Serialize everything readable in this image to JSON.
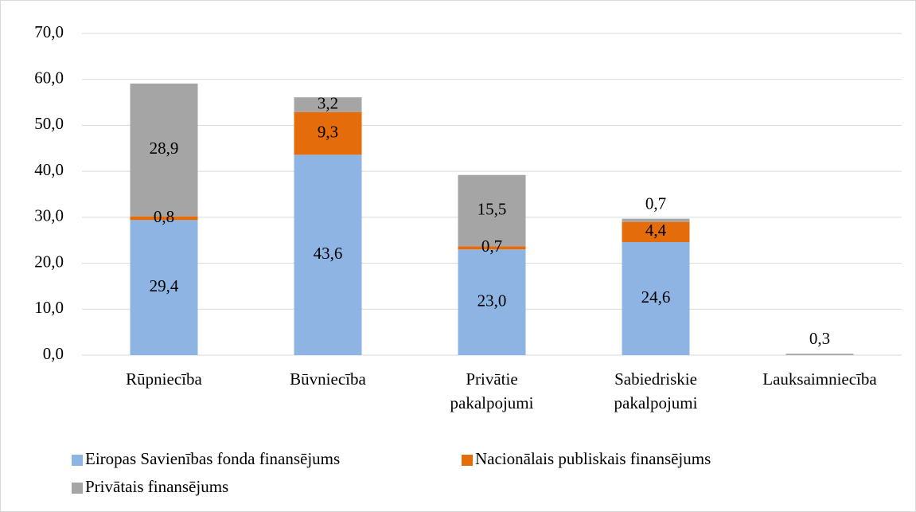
{
  "chart_data": {
    "type": "stacked_bar",
    "categories": [
      "Rūpniecība",
      "Būvniecība",
      "Privātie pakalpojumi",
      "Sabiedriskie pakalpojumi",
      "Lauksaimniecība"
    ],
    "series": [
      {
        "name": "Eiropas Savienības fonda finansējums",
        "color": "#8db4e2",
        "values": [
          29.4,
          43.6,
          23.0,
          24.6,
          null
        ],
        "value_labels": [
          "29,4",
          "43,6",
          "23,0",
          "24,6",
          null
        ]
      },
      {
        "name": "Nacionālais publiskais finansējums",
        "color": "#e46c0a",
        "values": [
          0.8,
          9.3,
          0.7,
          4.4,
          null
        ],
        "value_labels": [
          "0,8",
          "9,3",
          "0,7",
          "4,4",
          null
        ]
      },
      {
        "name": "Privātais finansējums",
        "color": "#a5a5a5",
        "values": [
          28.9,
          3.2,
          15.5,
          0.7,
          0.3
        ],
        "value_labels": [
          "28,9",
          "3,2",
          "15,5",
          "0,7",
          "0,3"
        ]
      }
    ],
    "ylim": [
      0,
      70
    ],
    "yticks": [
      {
        "value": 0,
        "label": "0,0"
      },
      {
        "value": 10,
        "label": "10,0"
      },
      {
        "value": 20,
        "label": "20,0"
      },
      {
        "value": 30,
        "label": "30,0"
      },
      {
        "value": 40,
        "label": "40,0"
      },
      {
        "value": 50,
        "label": "50,0"
      },
      {
        "value": 60,
        "label": "60,0"
      },
      {
        "value": 70,
        "label": "70,0"
      }
    ],
    "grid": true,
    "legend": "bottom"
  }
}
